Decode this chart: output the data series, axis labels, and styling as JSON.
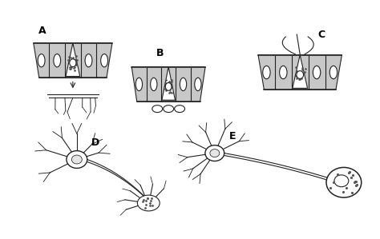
{
  "bg_color": "#ffffff",
  "label_A": "A",
  "label_B": "B",
  "label_C": "C",
  "label_D": "D",
  "label_E": "E",
  "label_fontsize": 9,
  "fig_width": 4.74,
  "fig_height": 2.99,
  "fig_dpi": 100,
  "line_color": "#222222",
  "dot_color": "#555555",
  "cell_color": "#c8c8c8",
  "lw": 0.8
}
